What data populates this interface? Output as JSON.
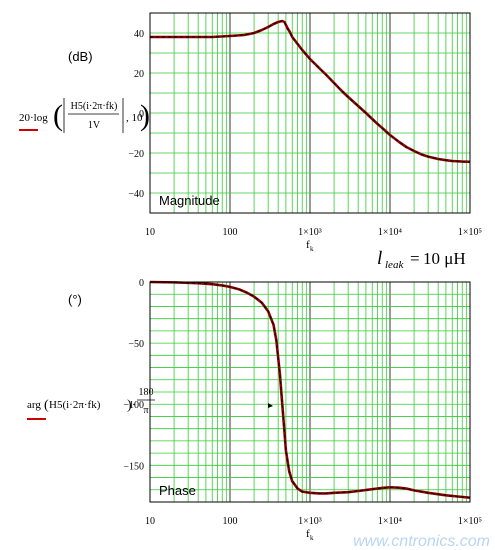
{
  "watermark": "www.cntronics.com",
  "annotation": {
    "symbol": "l",
    "subscript": "leak",
    "equals": "=",
    "value": "10 μH"
  },
  "colors": {
    "grid": "#33cc33",
    "frame": "#000000",
    "trace_main": "#8b0000",
    "trace_overlay": "#000000",
    "legend_red": "#cc0000",
    "watermark": "#b8d6f0"
  },
  "chart_data": [
    {
      "type": "line",
      "title": "Magnitude",
      "unit_label": "(dB)",
      "ylabel_expr": {
        "prefix": "20·log",
        "numerator": "H5(i·2π·fk)",
        "denominator": "1V",
        "suffix": ", 10"
      },
      "xlabel": "fk",
      "x_scale": "log",
      "xlim": [
        10,
        100000
      ],
      "ylim": [
        -50,
        50
      ],
      "x_ticks": [
        {
          "value": 10,
          "label": "10"
        },
        {
          "value": 100,
          "label": "100"
        },
        {
          "value": 1000,
          "label": "1×10³"
        },
        {
          "value": 10000,
          "label": "1×10⁴"
        },
        {
          "value": 100000,
          "label": "1×10⁵"
        }
      ],
      "y_ticks": [
        40,
        20,
        0,
        -20,
        -40
      ],
      "grid": true,
      "series": [
        {
          "x": [
            10,
            30,
            60,
            100,
            150,
            200,
            250,
            300,
            350,
            400,
            450,
            480,
            500,
            530,
            560,
            600,
            700,
            800,
            1000,
            1300,
            1600,
            2000,
            2500,
            3000,
            4000,
            5000,
            6000,
            7000,
            8000,
            10000,
            13000,
            16000,
            20000,
            25000,
            30000,
            40000,
            50000,
            60000,
            80000,
            100000
          ],
          "y": [
            38,
            38,
            38,
            38.5,
            39,
            40,
            41.5,
            43,
            44.5,
            45.5,
            46,
            45.5,
            44,
            42,
            40.5,
            38,
            34.5,
            31.5,
            27,
            22.5,
            19,
            15,
            11,
            8,
            3.5,
            0,
            -3,
            -5.5,
            -7.5,
            -11,
            -14.5,
            -17,
            -19,
            -20.8,
            -21.8,
            -23,
            -23.6,
            -24,
            -24.3,
            -24.4
          ]
        }
      ]
    },
    {
      "type": "line",
      "title": "Phase",
      "unit_label": "(°)",
      "ylabel_expr": {
        "prefix": "arg",
        "numerator": "H5(i·2π·fk)",
        "factor": "180",
        "factor_den": "π"
      },
      "xlabel": "fk",
      "x_scale": "log",
      "xlim": [
        10,
        100000
      ],
      "ylim": [
        -180,
        0
      ],
      "x_ticks": [
        {
          "value": 10,
          "label": "10"
        },
        {
          "value": 100,
          "label": "100"
        },
        {
          "value": 1000,
          "label": "1×10³"
        },
        {
          "value": 10000,
          "label": "1×10⁴"
        },
        {
          "value": 100000,
          "label": "1×10⁵"
        }
      ],
      "y_ticks": [
        0,
        -50,
        -100,
        -150
      ],
      "grid": true,
      "series": [
        {
          "x": [
            10,
            20,
            40,
            60,
            80,
            100,
            130,
            160,
            200,
            250,
            300,
            350,
            380,
            420,
            450,
            480,
            500,
            550,
            600,
            700,
            800,
            1000,
            1300,
            1600,
            2000,
            3000,
            4000,
            6000,
            8000,
            10000,
            13000,
            16000,
            20000,
            30000,
            50000,
            70000,
            100000
          ],
          "y": [
            0,
            -0.3,
            -1,
            -1.8,
            -2.8,
            -4,
            -6,
            -8.5,
            -12,
            -17,
            -24,
            -35,
            -48,
            -75,
            -100,
            -123,
            -138,
            -155,
            -163,
            -169,
            -171.5,
            -172.5,
            -173,
            -173,
            -172.5,
            -172,
            -171,
            -169.5,
            -168.5,
            -168,
            -168.3,
            -169,
            -170.5,
            -172.5,
            -174.5,
            -175.5,
            -176.5
          ]
        }
      ]
    }
  ]
}
